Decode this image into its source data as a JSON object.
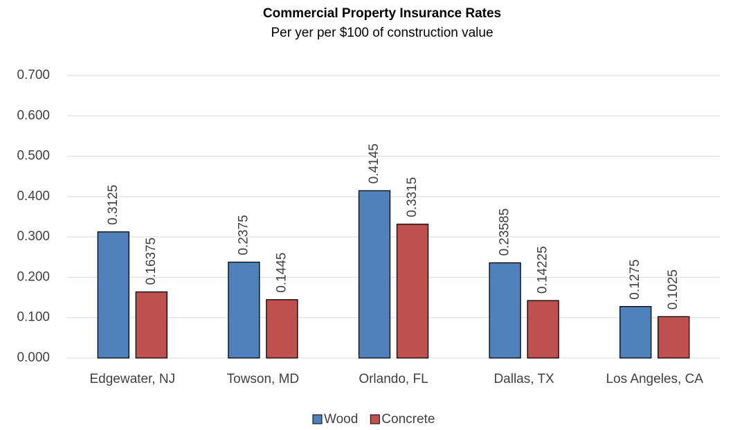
{
  "chart_data": {
    "type": "bar",
    "title": "Commercial Property Insurance Rates",
    "subtitle": "Per yer per $100 of construction value",
    "categories": [
      "Edgewater, NJ",
      "Towson, MD",
      "Orlando, FL",
      "Dallas, TX",
      "Los Angeles, CA"
    ],
    "series": [
      {
        "name": "Wood",
        "color": "#4f81bd",
        "values": [
          0.3125,
          0.2375,
          0.4145,
          0.23585,
          0.1275
        ]
      },
      {
        "name": "Concrete",
        "color": "#c0504d",
        "values": [
          0.16375,
          0.1445,
          0.3315,
          0.14225,
          0.1025
        ]
      }
    ],
    "ylim": [
      0,
      0.7
    ],
    "yticks": [
      {
        "value": 0,
        "label": "0.000"
      },
      {
        "value": 0.1,
        "label": "0.100"
      },
      {
        "value": 0.2,
        "label": "0.200"
      },
      {
        "value": 0.3,
        "label": "0.300"
      },
      {
        "value": 0.4,
        "label": "0.400"
      },
      {
        "value": 0.5,
        "label": "0.500"
      },
      {
        "value": 0.6,
        "label": "0.600"
      },
      {
        "value": 0.7,
        "label": "0.700"
      }
    ],
    "grid": true,
    "legend": "bottom"
  }
}
